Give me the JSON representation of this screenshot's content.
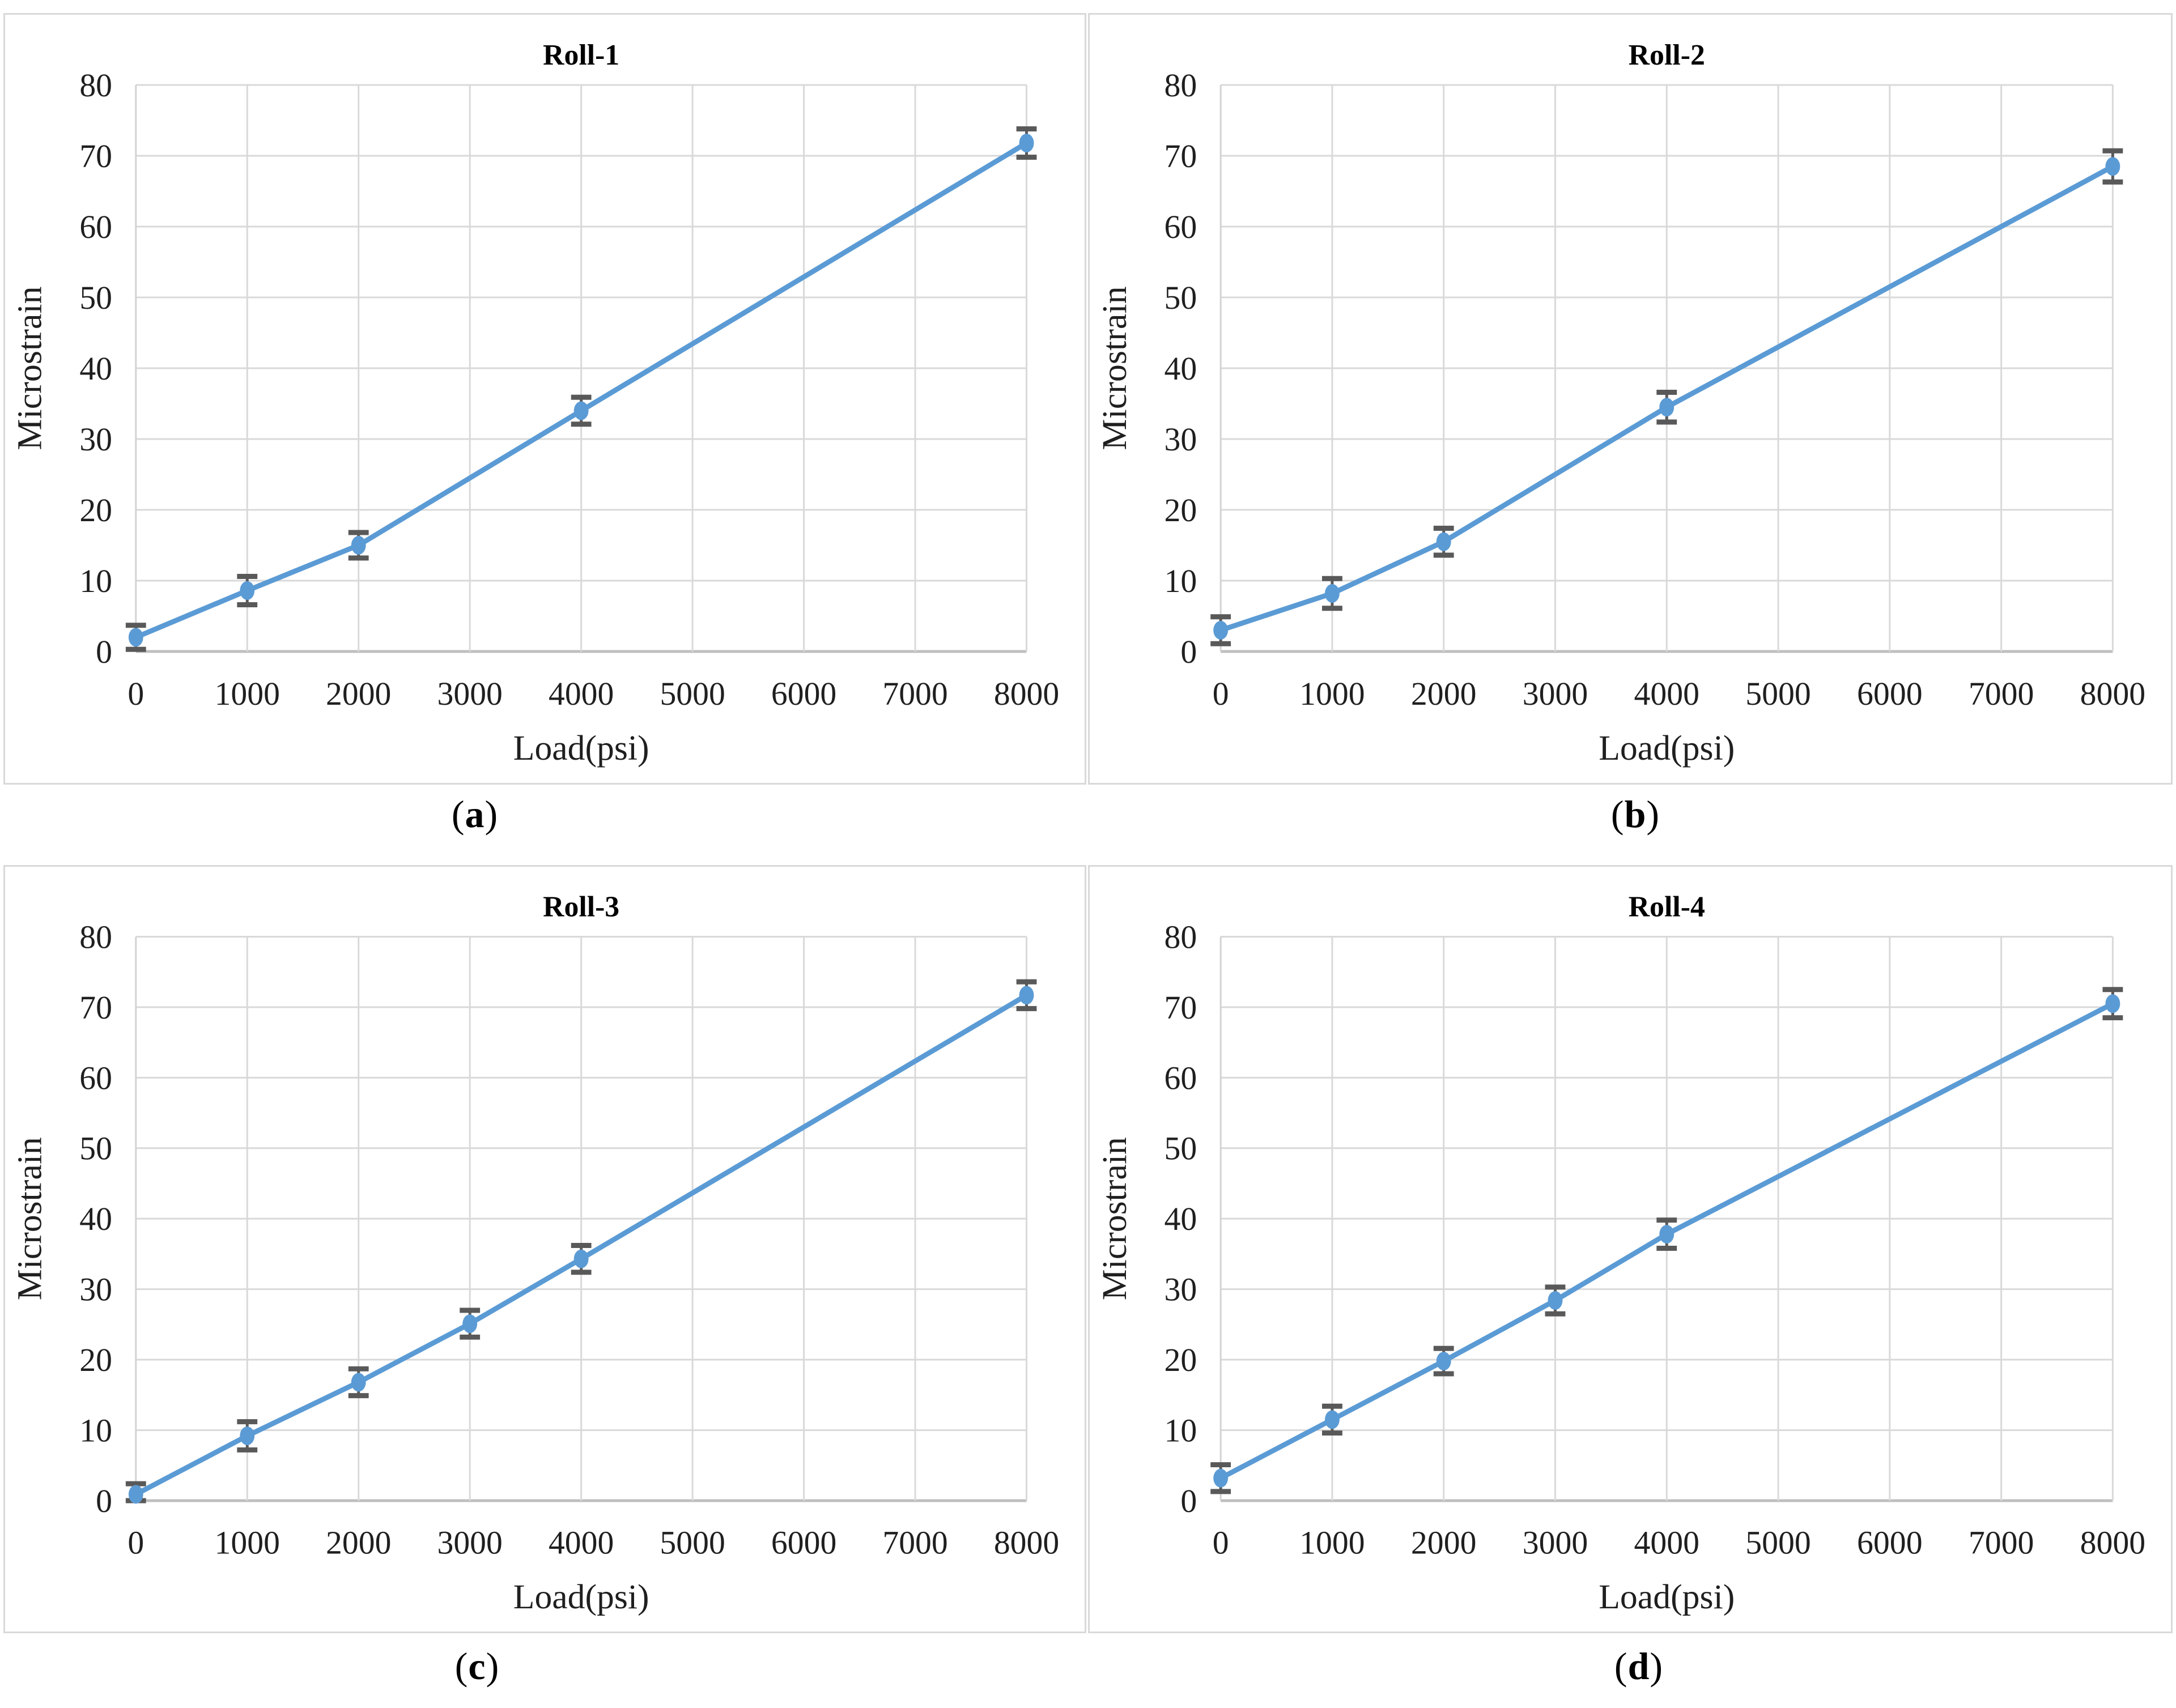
{
  "figure": {
    "background": "#FFFFFF",
    "panel_border_color": "#D9D9D9",
    "sub_labels": [
      {
        "open": "(",
        "letter": "a",
        "close": ")"
      },
      {
        "open": "(",
        "letter": "b",
        "close": ")"
      },
      {
        "open": "(",
        "letter": "c",
        "close": ")"
      },
      {
        "open": "(",
        "letter": "d",
        "close": ")"
      }
    ]
  },
  "chart_style": {
    "line_color": "#5B9BD5",
    "marker_color": "#5B9BD5",
    "error_bar_color": "#595959",
    "grid_color": "#D9D9D9",
    "x_axis_line_color": "#BFBFBF",
    "y_axis_line_color": "#D2D2D2",
    "tick_text_color": "#1F1F1F",
    "title_color": "#000000"
  },
  "chart_data": [
    {
      "type": "line",
      "title": "Roll-1",
      "xlabel": "Load(psi)",
      "ylabel": "Microstrain",
      "xlim": [
        0,
        8000
      ],
      "ylim": [
        0,
        80
      ],
      "x_ticks": [
        0,
        1000,
        2000,
        3000,
        4000,
        5000,
        6000,
        7000,
        8000
      ],
      "y_ticks": [
        0,
        10,
        20,
        30,
        40,
        50,
        60,
        70,
        80
      ],
      "grid": true,
      "legend": false,
      "x": [
        0,
        1000,
        2000,
        4000,
        8000
      ],
      "y": [
        2.0,
        8.6,
        15.0,
        34.0,
        71.8
      ],
      "y_err": [
        1.7,
        2.0,
        1.8,
        1.9,
        2.0
      ]
    },
    {
      "type": "line",
      "title": "Roll-2",
      "xlabel": "Load(psi)",
      "ylabel": "Microstrain",
      "xlim": [
        0,
        8000
      ],
      "ylim": [
        0,
        80
      ],
      "x_ticks": [
        0,
        1000,
        2000,
        3000,
        4000,
        5000,
        6000,
        7000,
        8000
      ],
      "y_ticks": [
        0,
        10,
        20,
        30,
        40,
        50,
        60,
        70,
        80
      ],
      "grid": true,
      "legend": false,
      "x": [
        0,
        1000,
        2000,
        4000,
        8000
      ],
      "y": [
        3.0,
        8.2,
        15.5,
        34.5,
        68.5
      ],
      "y_err": [
        1.9,
        2.1,
        1.9,
        2.1,
        2.2
      ]
    },
    {
      "type": "line",
      "title": "Roll-3",
      "xlabel": "Load(psi)",
      "ylabel": "Microstrain",
      "xlim": [
        0,
        8000
      ],
      "ylim": [
        0,
        80
      ],
      "x_ticks": [
        0,
        1000,
        2000,
        3000,
        4000,
        5000,
        6000,
        7000,
        8000
      ],
      "y_ticks": [
        0,
        10,
        20,
        30,
        40,
        50,
        60,
        70,
        80
      ],
      "grid": true,
      "legend": false,
      "x": [
        0,
        1000,
        2000,
        3000,
        4000,
        8000
      ],
      "y": [
        0.9,
        9.2,
        16.8,
        25.1,
        34.3,
        71.7
      ],
      "y_err": [
        1.5,
        2.0,
        1.9,
        1.9,
        1.9,
        1.9
      ]
    },
    {
      "type": "line",
      "title": "Roll-4",
      "xlabel": "Load(psi)",
      "ylabel": "Microstrain",
      "xlim": [
        0,
        8000
      ],
      "ylim": [
        0,
        80
      ],
      "x_ticks": [
        0,
        1000,
        2000,
        3000,
        4000,
        5000,
        6000,
        7000,
        8000
      ],
      "y_ticks": [
        0,
        10,
        20,
        30,
        40,
        50,
        60,
        70,
        80
      ],
      "grid": true,
      "legend": false,
      "x": [
        0,
        1000,
        2000,
        3000,
        4000,
        8000
      ],
      "y": [
        3.2,
        11.5,
        19.8,
        28.4,
        37.8,
        70.5
      ],
      "y_err": [
        1.9,
        1.9,
        1.8,
        1.9,
        2.0,
        2.0
      ]
    }
  ]
}
